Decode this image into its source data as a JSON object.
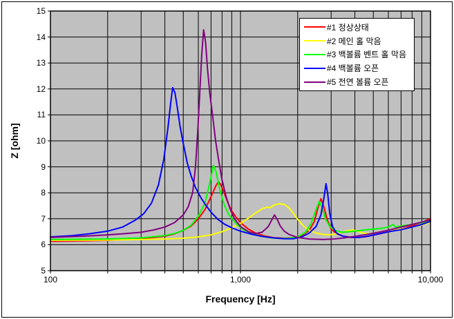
{
  "chart_data": {
    "type": "line",
    "title": "",
    "xlabel": "Frequency [Hz]",
    "ylabel": "Z [ohm]",
    "x_scale": "log",
    "xlim": [
      100,
      10000
    ],
    "ylim": [
      5,
      15
    ],
    "grid": true,
    "plot_bg_color": "#c0c0c0",
    "grid_color": "#000000",
    "legend_position": "top-right",
    "x_ticks": [
      {
        "f": 100,
        "label": "100"
      },
      {
        "f": 1000,
        "label": "1,000"
      },
      {
        "f": 10000,
        "label": "10,000"
      }
    ],
    "y_ticks": [
      5,
      6,
      7,
      8,
      9,
      10,
      11,
      12,
      13,
      14,
      15
    ],
    "series": [
      {
        "name": "#1 정상상태",
        "color": "#ff0000",
        "points": [
          [
            100,
            6.13
          ],
          [
            150,
            6.15
          ],
          [
            200,
            6.17
          ],
          [
            250,
            6.2
          ],
          [
            300,
            6.23
          ],
          [
            350,
            6.28
          ],
          [
            400,
            6.33
          ],
          [
            450,
            6.42
          ],
          [
            500,
            6.55
          ],
          [
            550,
            6.72
          ],
          [
            600,
            7.0
          ],
          [
            650,
            7.35
          ],
          [
            700,
            7.85
          ],
          [
            740,
            8.25
          ],
          [
            765,
            8.42
          ],
          [
            790,
            8.3
          ],
          [
            820,
            8.0
          ],
          [
            860,
            7.6
          ],
          [
            900,
            7.3
          ],
          [
            950,
            7.05
          ],
          [
            1000,
            6.85
          ],
          [
            1100,
            6.6
          ],
          [
            1200,
            6.45
          ],
          [
            1350,
            6.33
          ],
          [
            1500,
            6.27
          ],
          [
            1700,
            6.25
          ],
          [
            1900,
            6.27
          ],
          [
            2100,
            6.35
          ],
          [
            2300,
            6.55
          ],
          [
            2450,
            6.9
          ],
          [
            2550,
            7.4
          ],
          [
            2650,
            7.77
          ],
          [
            2750,
            7.45
          ],
          [
            2850,
            7.0
          ],
          [
            3000,
            6.6
          ],
          [
            3200,
            6.42
          ],
          [
            3500,
            6.32
          ],
          [
            4000,
            6.28
          ],
          [
            4500,
            6.3
          ],
          [
            5000,
            6.37
          ],
          [
            5500,
            6.43
          ],
          [
            6000,
            6.5
          ],
          [
            7000,
            6.6
          ],
          [
            8000,
            6.73
          ],
          [
            9000,
            6.86
          ],
          [
            10000,
            7.0
          ]
        ]
      },
      {
        "name": "#2 메인 홀 막음",
        "color": "#ffff00",
        "points": [
          [
            100,
            6.17
          ],
          [
            200,
            6.18
          ],
          [
            300,
            6.2
          ],
          [
            400,
            6.22
          ],
          [
            500,
            6.25
          ],
          [
            600,
            6.3
          ],
          [
            700,
            6.38
          ],
          [
            800,
            6.5
          ],
          [
            900,
            6.65
          ],
          [
            1000,
            6.82
          ],
          [
            1100,
            7.02
          ],
          [
            1200,
            7.22
          ],
          [
            1300,
            7.38
          ],
          [
            1380,
            7.45
          ],
          [
            1430,
            7.42
          ],
          [
            1500,
            7.52
          ],
          [
            1600,
            7.58
          ],
          [
            1700,
            7.55
          ],
          [
            1800,
            7.42
          ],
          [
            1900,
            7.2
          ],
          [
            2000,
            6.98
          ],
          [
            2150,
            6.72
          ],
          [
            2300,
            6.55
          ],
          [
            2500,
            6.45
          ],
          [
            2700,
            6.4
          ],
          [
            2900,
            6.38
          ],
          [
            3100,
            6.4
          ],
          [
            3400,
            6.47
          ],
          [
            3700,
            6.55
          ],
          [
            3900,
            6.57
          ],
          [
            4100,
            6.53
          ],
          [
            4400,
            6.45
          ],
          [
            4700,
            6.42
          ],
          [
            5000,
            6.44
          ],
          [
            5500,
            6.5
          ],
          [
            6000,
            6.54
          ],
          [
            6500,
            6.57
          ],
          [
            7000,
            6.6
          ],
          [
            8000,
            6.68
          ],
          [
            9000,
            6.76
          ],
          [
            10000,
            6.86
          ]
        ]
      },
      {
        "name": "#3 백볼륨 벤트 홀 막음",
        "color": "#00ff00",
        "points": [
          [
            100,
            6.2
          ],
          [
            200,
            6.22
          ],
          [
            300,
            6.26
          ],
          [
            400,
            6.35
          ],
          [
            450,
            6.43
          ],
          [
            500,
            6.55
          ],
          [
            550,
            6.75
          ],
          [
            600,
            7.1
          ],
          [
            650,
            7.6
          ],
          [
            690,
            8.4
          ],
          [
            720,
            9.05
          ],
          [
            745,
            8.8
          ],
          [
            780,
            8.1
          ],
          [
            820,
            7.55
          ],
          [
            870,
            7.15
          ],
          [
            950,
            6.8
          ],
          [
            1050,
            6.55
          ],
          [
            1200,
            6.38
          ],
          [
            1400,
            6.28
          ],
          [
            1600,
            6.24
          ],
          [
            1800,
            6.25
          ],
          [
            2000,
            6.3
          ],
          [
            2200,
            6.48
          ],
          [
            2350,
            6.8
          ],
          [
            2500,
            7.35
          ],
          [
            2600,
            7.67
          ],
          [
            2700,
            7.4
          ],
          [
            2800,
            7.0
          ],
          [
            2950,
            6.7
          ],
          [
            3150,
            6.55
          ],
          [
            3400,
            6.48
          ],
          [
            3700,
            6.5
          ],
          [
            4000,
            6.52
          ],
          [
            4500,
            6.57
          ],
          [
            5000,
            6.6
          ],
          [
            5500,
            6.63
          ],
          [
            6000,
            6.68
          ],
          [
            6350,
            6.78
          ],
          [
            6550,
            6.68
          ],
          [
            7000,
            6.72
          ],
          [
            8000,
            6.78
          ],
          [
            9000,
            6.85
          ],
          [
            10000,
            6.92
          ]
        ]
      },
      {
        "name": "#4 백볼륨 오픈",
        "color": "#0000ff",
        "points": [
          [
            100,
            6.3
          ],
          [
            130,
            6.35
          ],
          [
            160,
            6.42
          ],
          [
            200,
            6.52
          ],
          [
            240,
            6.68
          ],
          [
            280,
            6.95
          ],
          [
            310,
            7.2
          ],
          [
            340,
            7.6
          ],
          [
            370,
            8.3
          ],
          [
            395,
            9.3
          ],
          [
            415,
            10.5
          ],
          [
            430,
            11.5
          ],
          [
            440,
            12.05
          ],
          [
            452,
            11.85
          ],
          [
            465,
            11.3
          ],
          [
            480,
            10.6
          ],
          [
            500,
            9.9
          ],
          [
            525,
            9.15
          ],
          [
            550,
            8.65
          ],
          [
            580,
            8.2
          ],
          [
            620,
            7.8
          ],
          [
            660,
            7.5
          ],
          [
            700,
            7.25
          ],
          [
            760,
            6.98
          ],
          [
            820,
            6.8
          ],
          [
            900,
            6.65
          ],
          [
            1000,
            6.52
          ],
          [
            1150,
            6.4
          ],
          [
            1300,
            6.32
          ],
          [
            1500,
            6.26
          ],
          [
            1700,
            6.23
          ],
          [
            1900,
            6.23
          ],
          [
            2100,
            6.3
          ],
          [
            2300,
            6.45
          ],
          [
            2500,
            6.7
          ],
          [
            2650,
            7.15
          ],
          [
            2750,
            7.8
          ],
          [
            2820,
            8.35
          ],
          [
            2880,
            7.95
          ],
          [
            2950,
            7.2
          ],
          [
            3050,
            6.7
          ],
          [
            3200,
            6.45
          ],
          [
            3450,
            6.33
          ],
          [
            3800,
            6.28
          ],
          [
            4200,
            6.28
          ],
          [
            4700,
            6.33
          ],
          [
            5200,
            6.4
          ],
          [
            6000,
            6.5
          ],
          [
            7000,
            6.58
          ],
          [
            8000,
            6.68
          ],
          [
            9000,
            6.78
          ],
          [
            10000,
            6.9
          ]
        ]
      },
      {
        "name": "#5 전연 볼륨 오픈",
        "color": "#800080",
        "points": [
          [
            100,
            6.28
          ],
          [
            150,
            6.33
          ],
          [
            200,
            6.38
          ],
          [
            250,
            6.43
          ],
          [
            300,
            6.48
          ],
          [
            350,
            6.57
          ],
          [
            400,
            6.68
          ],
          [
            450,
            6.85
          ],
          [
            500,
            7.15
          ],
          [
            530,
            7.45
          ],
          [
            560,
            8.0
          ],
          [
            580,
            9.0
          ],
          [
            595,
            10.3
          ],
          [
            610,
            11.8
          ],
          [
            625,
            13.3
          ],
          [
            640,
            14.28
          ],
          [
            655,
            13.8
          ],
          [
            670,
            12.8
          ],
          [
            690,
            11.8
          ],
          [
            710,
            11.1
          ],
          [
            740,
            10.0
          ],
          [
            770,
            9.2
          ],
          [
            800,
            8.5
          ],
          [
            840,
            7.85
          ],
          [
            880,
            7.4
          ],
          [
            930,
            7.0
          ],
          [
            1000,
            6.7
          ],
          [
            1100,
            6.5
          ],
          [
            1200,
            6.43
          ],
          [
            1300,
            6.48
          ],
          [
            1400,
            6.7
          ],
          [
            1460,
            6.95
          ],
          [
            1510,
            7.15
          ],
          [
            1560,
            6.98
          ],
          [
            1620,
            6.72
          ],
          [
            1700,
            6.52
          ],
          [
            1800,
            6.4
          ],
          [
            2000,
            6.28
          ],
          [
            2300,
            6.22
          ],
          [
            2700,
            6.2
          ],
          [
            3100,
            6.22
          ],
          [
            3500,
            6.26
          ],
          [
            4000,
            6.32
          ],
          [
            4500,
            6.38
          ],
          [
            5000,
            6.44
          ],
          [
            5500,
            6.5
          ],
          [
            6000,
            6.56
          ],
          [
            6500,
            6.62
          ],
          [
            7000,
            6.68
          ],
          [
            8000,
            6.78
          ],
          [
            9000,
            6.87
          ],
          [
            10000,
            6.96
          ]
        ]
      }
    ]
  }
}
